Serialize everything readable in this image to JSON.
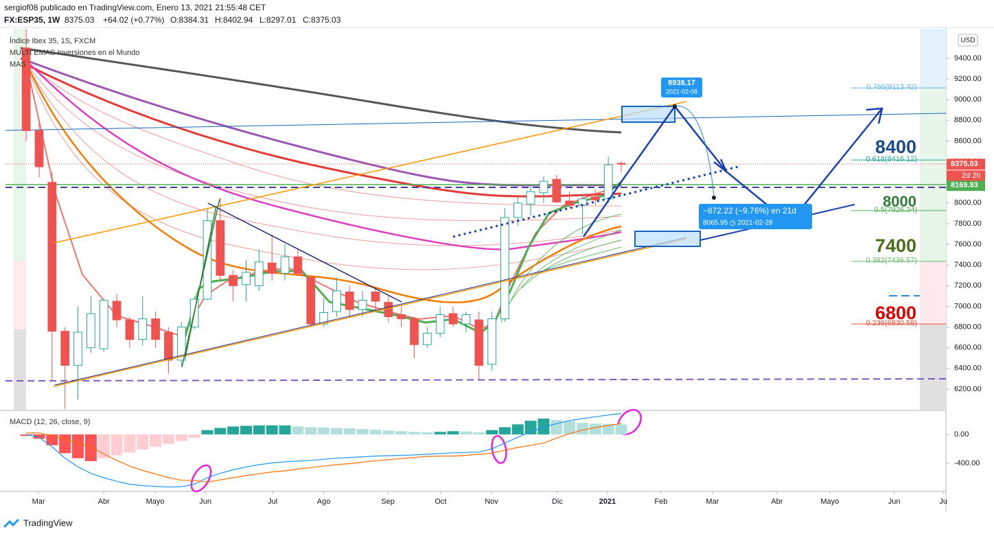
{
  "chart_data": {
    "type": "candlestick",
    "publisher": "sergiof08 publicado en TradingView.com, Enero 13, 2021 21:55:48 CET",
    "symbol": "FX:ESP35, 1W",
    "last": 8375.03,
    "change": "+64.02 (+0.77%)",
    "ohlc": [
      "O:8384.31",
      "H:8402.94",
      "L:8297.01",
      "C:8375.03"
    ],
    "legend": [
      "Índice Ibex 35, 1S, FXCM",
      "MULTI EMAS Inversiones en el Mundo",
      "MAS"
    ],
    "currency": "USD",
    "up_color": "#26a69a",
    "down_color": "#ef5350",
    "candles": {
      "x": [
        0,
        1,
        2,
        3,
        4,
        5,
        6,
        7,
        8,
        9,
        10,
        11,
        12,
        13,
        14,
        15,
        16,
        17,
        18,
        19,
        20,
        21,
        22,
        23,
        24,
        25,
        26,
        27,
        28,
        29,
        30,
        31,
        32,
        33,
        34,
        35,
        36,
        37,
        38,
        39,
        40,
        41,
        42,
        43,
        44,
        45,
        46
      ],
      "open": [
        9500,
        8700,
        8200,
        6760,
        6430,
        6600,
        6590,
        7050,
        6870,
        6680,
        6880,
        6750,
        6480,
        6800,
        7070,
        7830,
        7300,
        7210,
        7200,
        7420,
        7320,
        7480,
        7280,
        6830,
        6950,
        7140,
        6970,
        7140,
        7040,
        6920,
        6880,
        6630,
        6740,
        6930,
        6830,
        6870,
        6440,
        6880,
        7860,
        7990,
        8100,
        8230,
        8020,
        7980,
        8060,
        8040,
        8384.31
      ],
      "high": [
        9680,
        8780,
        8300,
        6800,
        7000,
        7100,
        7060,
        7120,
        6900,
        7100,
        6950,
        6800,
        6850,
        7100,
        7950,
        8050,
        7350,
        7450,
        7550,
        7700,
        7600,
        7550,
        7300,
        7080,
        7280,
        7200,
        7150,
        7180,
        7100,
        7000,
        6900,
        6800,
        7000,
        7000,
        6950,
        6950,
        6950,
        7950,
        8060,
        8180,
        8260,
        8270,
        8110,
        8080,
        8130,
        8450,
        8402.94
      ],
      "low": [
        8600,
        8250,
        6280,
        6010,
        6100,
        6550,
        6560,
        6800,
        6600,
        6620,
        6600,
        6350,
        6420,
        6780,
        7060,
        7250,
        7050,
        7050,
        7150,
        7250,
        7250,
        7300,
        6800,
        6800,
        6900,
        6900,
        6900,
        6950,
        6850,
        6800,
        6500,
        6600,
        6700,
        6800,
        6750,
        6290,
        6380,
        6850,
        7780,
        7880,
        8000,
        8000,
        7950,
        7700,
        7980,
        8000,
        8297.01
      ],
      "close": [
        8700,
        8350,
        6760,
        6430,
        6750,
        6930,
        7060,
        6870,
        6680,
        6880,
        6680,
        6480,
        6800,
        7070,
        7830,
        7300,
        7200,
        7330,
        7430,
        7320,
        7480,
        7320,
        6830,
        6940,
        7150,
        6970,
        7060,
        7050,
        6900,
        6880,
        6630,
        6740,
        6920,
        6830,
        6920,
        6430,
        6880,
        7860,
        8000,
        8110,
        8210,
        8010,
        7980,
        8040,
        8030,
        8370,
        8375.03
      ]
    },
    "xlim": [
      -1.6,
      71.1
    ],
    "xticks": [
      {
        "value": 0.95,
        "label": "Mar"
      },
      {
        "value": 6.0,
        "label": "Abr"
      },
      {
        "value": 9.97,
        "label": "Mayo"
      },
      {
        "value": 13.85,
        "label": "Jun"
      },
      {
        "value": 19.05,
        "label": "Jul"
      },
      {
        "value": 23.0,
        "label": "Ago"
      },
      {
        "value": 27.96,
        "label": "Sep"
      },
      {
        "value": 32.04,
        "label": "Oct"
      },
      {
        "value": 35.97,
        "label": "Nov"
      },
      {
        "value": 41.06,
        "label": "Dic"
      },
      {
        "value": 44.93,
        "label": "2021"
      },
      {
        "value": 49.07,
        "label": "Feb"
      },
      {
        "value": 53.05,
        "label": "Mar"
      },
      {
        "value": 58.04,
        "label": "Abr"
      },
      {
        "value": 62.12,
        "label": "Mayo"
      },
      {
        "value": 67.1,
        "label": "Jun"
      },
      {
        "value": 70.9,
        "label": "Ju"
      }
    ],
    "ylim": [
      5994,
      9685
    ],
    "yticks": [
      {
        "value": 6200,
        "label": "6200.00"
      },
      {
        "value": 6400,
        "label": "6400.00"
      },
      {
        "value": 6600,
        "label": "6600.00"
      },
      {
        "value": 6800,
        "label": "6800.00"
      },
      {
        "value": 7000,
        "label": "7000.00"
      },
      {
        "value": 7200,
        "label": "7200.00"
      },
      {
        "value": 7400,
        "label": "7400.00"
      },
      {
        "value": 7600,
        "label": "7600.00"
      },
      {
        "value": 7800,
        "label": "7800.00"
      },
      {
        "value": 8000,
        "label": "8000.00"
      },
      {
        "value": 8200,
        "label": "8200.00"
      },
      {
        "value": 8400,
        "label": "8400.00"
      },
      {
        "value": 8600,
        "label": "8600.00"
      },
      {
        "value": 8800,
        "label": "8800.00"
      },
      {
        "value": 9000,
        "label": "9000.00"
      },
      {
        "value": 9200,
        "label": "9200.00"
      },
      {
        "value": 9400,
        "label": "9400.00"
      }
    ],
    "price_tags": [
      {
        "value": 8375.03,
        "color": "#ef5350"
      },
      {
        "value": 8169.83,
        "color": "#4caf50"
      }
    ],
    "countdown": "2d 2h",
    "fib": [
      {
        "label": "0.786(9113.42)",
        "value": 9113.42,
        "color": "#64b5f6"
      },
      {
        "label": "0.618(8416.12)",
        "value": 8416.12,
        "color": "#26a69a"
      },
      {
        "label": "0.5(7926.34)",
        "value": 7926.34,
        "color": "#4caf50"
      },
      {
        "label": "0.382(7436.57)",
        "value": 7436.57,
        "color": "#66bb6a"
      },
      {
        "label": "0.236(6830.58)",
        "value": 6830.58,
        "color": "#f44336"
      }
    ],
    "levels": [
      {
        "text": 8400,
        "color": "#1a4b8c"
      },
      {
        "text": 8000,
        "color": "#2e7d32"
      },
      {
        "text": 7400,
        "color": "#4b6e1a"
      },
      {
        "text": 6800,
        "color": "#e00000"
      }
    ],
    "callout_top": [
      "8938.17",
      "2021-02-08"
    ],
    "callout_range": [
      "−872.22 (−9.76%) en 21d",
      "8065.95 ◷ 2021-02-28"
    ],
    "macd": {
      "title": "MACD (12, 26, close, 9)",
      "ylim": [
        -790,
        314
      ],
      "yticks": [
        {
          "value": 0,
          "label": "0.00"
        },
        {
          "value": -400,
          "label": "-400.00"
        }
      ],
      "histogram": [
        -20,
        -60,
        -150,
        -260,
        -330,
        -370,
        -330,
        -290,
        -250,
        -210,
        -170,
        -130,
        -90,
        -50,
        60,
        90,
        110,
        120,
        125,
        125,
        125,
        110,
        100,
        95,
        90,
        85,
        75,
        65,
        55,
        45,
        35,
        30,
        35,
        45,
        40,
        30,
        60,
        100,
        140,
        190,
        220,
        200,
        180,
        160,
        150,
        145,
        140
      ],
      "macd_line": [
        0,
        -40,
        -170,
        -330,
        -450,
        -540,
        -600,
        -650,
        -690,
        -710,
        -720,
        -730,
        -725,
        -690,
        -600,
        -540,
        -490,
        -450,
        -420,
        -395,
        -380,
        -370,
        -360,
        -345,
        -330,
        -320,
        -310,
        -300,
        -295,
        -290,
        -285,
        -275,
        -265,
        -255,
        -250,
        -245,
        -200,
        -120,
        -40,
        40,
        100,
        150,
        190,
        220,
        245,
        270,
        290
      ],
      "signal_line": [
        20,
        20,
        -20,
        -70,
        -120,
        -170,
        -270,
        -360,
        -440,
        -500,
        -550,
        -600,
        -635,
        -640,
        -660,
        -630,
        -600,
        -570,
        -545,
        -520,
        -505,
        -480,
        -460,
        -440,
        -420,
        -405,
        -385,
        -365,
        -350,
        -335,
        -320,
        -305,
        -300,
        -300,
        -290,
        -275,
        -260,
        -220,
        -180,
        -150,
        -120,
        -50,
        10,
        60,
        95,
        125,
        150
      ],
      "macd_color": "#2196f3",
      "signal_color": "#ff6d00",
      "hist_colors": {
        "pos_up": "#26a69a",
        "pos_down": "#b2dfdb",
        "neg_down": "#ff5252",
        "neg_up": "#ffcdd2"
      }
    },
    "brand": "TradingView"
  }
}
